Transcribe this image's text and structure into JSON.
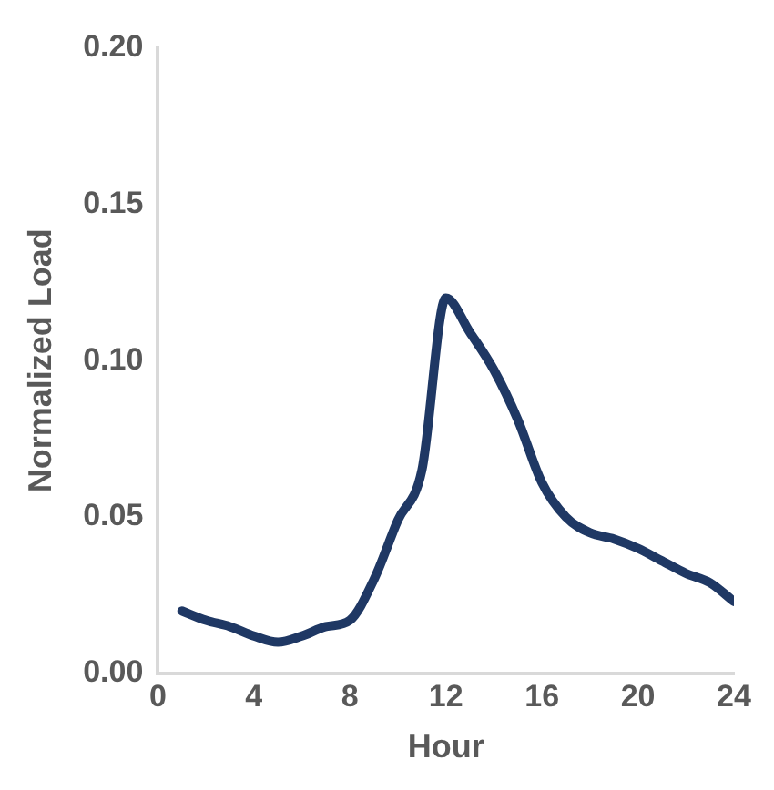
{
  "chart_data": {
    "type": "line",
    "xlabel": "Hour",
    "ylabel": "Normalized Load",
    "x": [
      1,
      2,
      3,
      4,
      5,
      6,
      7,
      8,
      9,
      10,
      11,
      12,
      13,
      14,
      15,
      16,
      17,
      18,
      19,
      20,
      21,
      22,
      23,
      24
    ],
    "series": [
      {
        "color": "#1f3864",
        "values": [
          0.02,
          0.017,
          0.015,
          0.012,
          0.01,
          0.012,
          0.015,
          0.017,
          0.03,
          0.049,
          0.065,
          0.12,
          0.109,
          0.097,
          0.081,
          0.061,
          0.05,
          0.045,
          0.043,
          0.04,
          0.036,
          0.032,
          0.029,
          0.023
        ]
      }
    ],
    "xlim": [
      0,
      24
    ],
    "xticks": [
      0,
      4,
      8,
      12,
      16,
      20,
      24
    ],
    "ylim": [
      0,
      0.2
    ],
    "yticks": [
      {
        "value": 0,
        "label": "0.00"
      },
      {
        "value": 0.05,
        "label": "0.05"
      },
      {
        "value": 0.1,
        "label": "0.10"
      },
      {
        "value": 0.15,
        "label": "0.15"
      },
      {
        "value": 0.2,
        "label": "0.20"
      }
    ],
    "grid": false,
    "legend": false,
    "marker": "none",
    "line_style": "solid"
  }
}
